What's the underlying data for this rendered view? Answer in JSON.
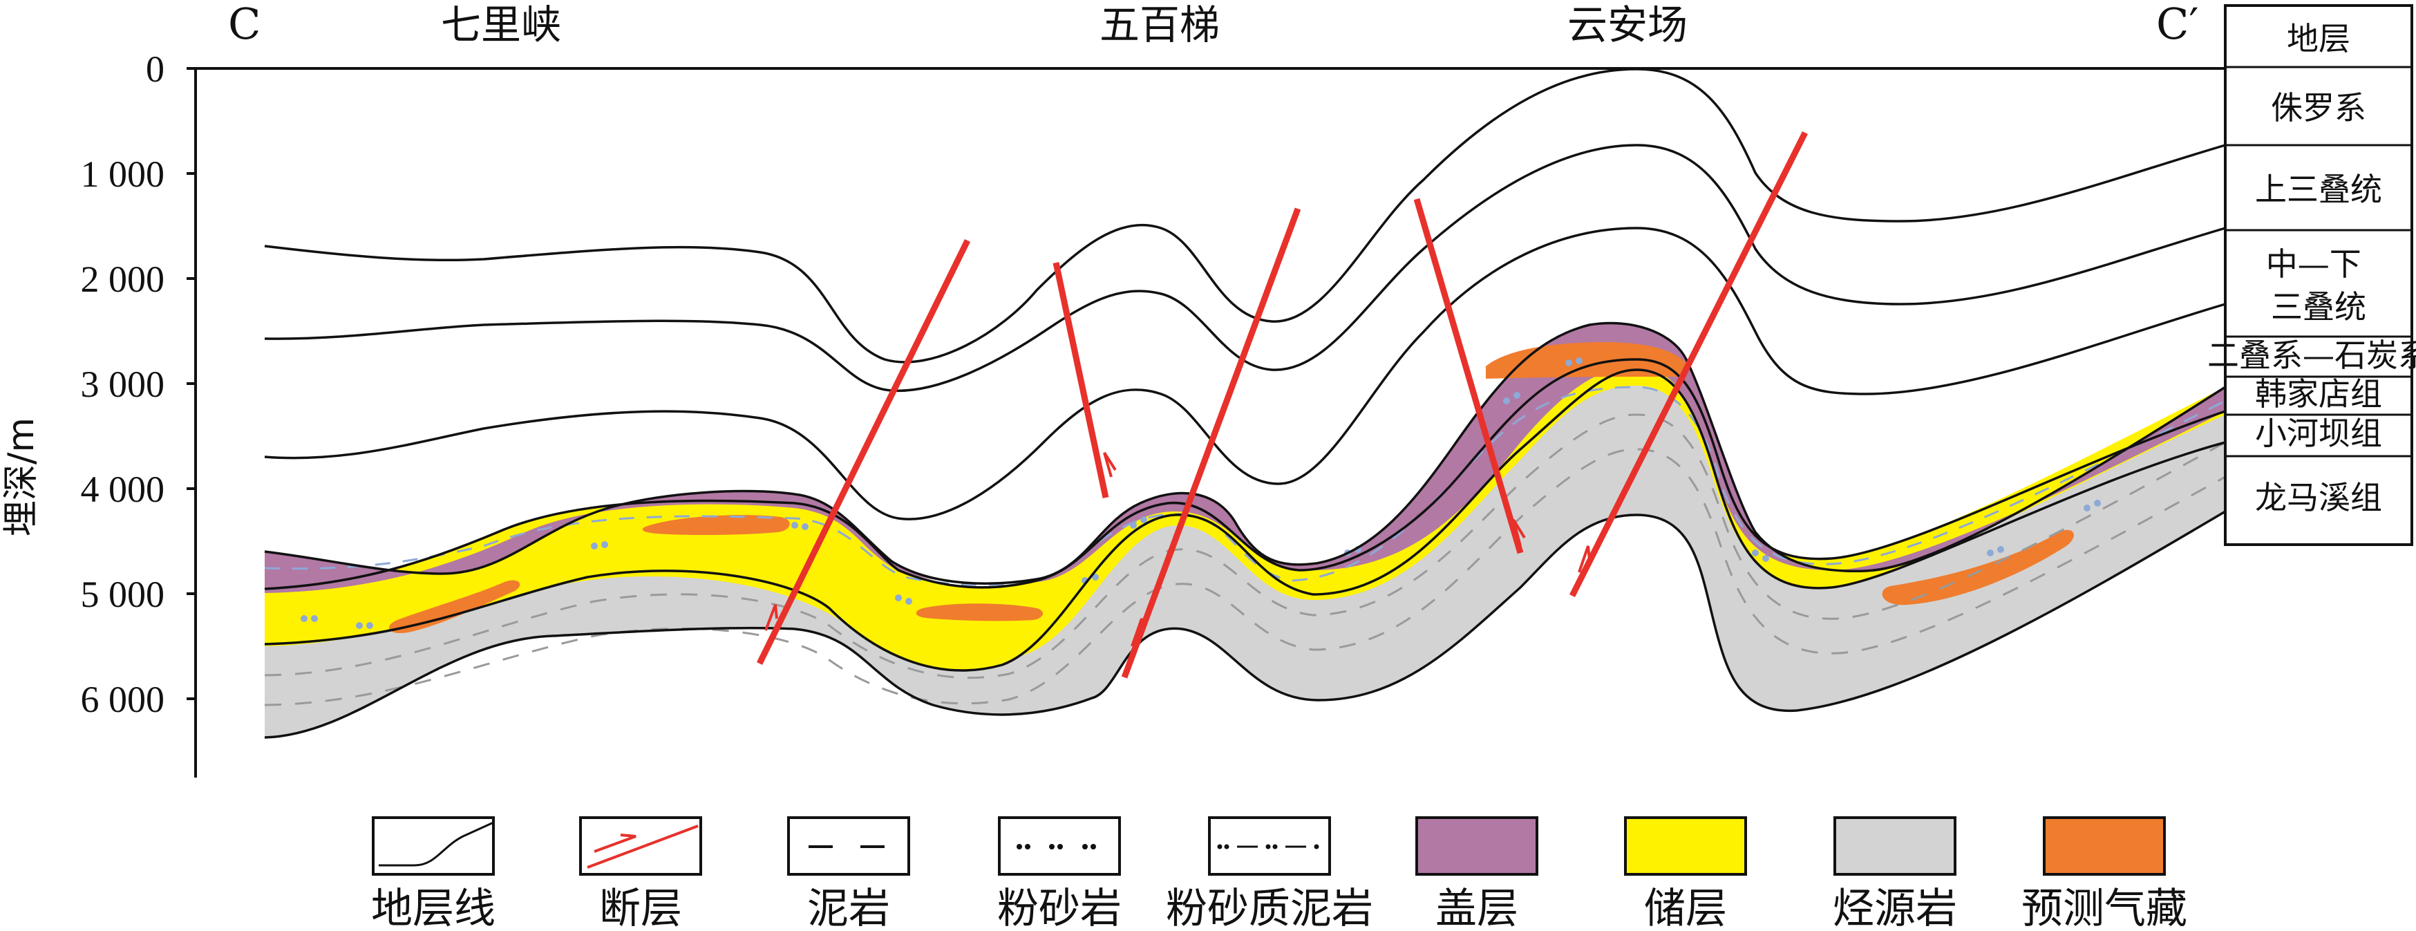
{
  "section": {
    "left_end": "C",
    "right_end": "C′",
    "places": [
      "七里峡",
      "五百梯",
      "云安场"
    ]
  },
  "axis": {
    "label": "埋深/m",
    "ticks": [
      "0",
      "1 000",
      "2 000",
      "3 000",
      "4 000",
      "5 000",
      "6 000"
    ]
  },
  "strata_column": {
    "header": "地层",
    "units": [
      "侏罗系",
      "上三叠统",
      "中—下\n三叠统",
      "二叠系—石炭系",
      "韩家店组",
      "小河坝组",
      "龙马溪组"
    ]
  },
  "legend": [
    {
      "key": "stratum-line",
      "label": "地层线"
    },
    {
      "key": "fault",
      "label": "断层"
    },
    {
      "key": "mudstone",
      "label": "泥岩"
    },
    {
      "key": "siltstone",
      "label": "粉砂岩"
    },
    {
      "key": "silty-mudstone",
      "label": "粉砂质泥岩"
    },
    {
      "key": "cap-rock",
      "label": "盖层"
    },
    {
      "key": "reservoir",
      "label": "储层"
    },
    {
      "key": "source-rock",
      "label": "烃源岩"
    },
    {
      "key": "predicted-gas",
      "label": "预测气藏"
    }
  ],
  "colors": {
    "cap": "#b279a4",
    "reservoir": "#fff200",
    "source": "#d3d3d3",
    "gas": "#f07c2e",
    "fault": "#e8312b",
    "line": "#111111"
  }
}
